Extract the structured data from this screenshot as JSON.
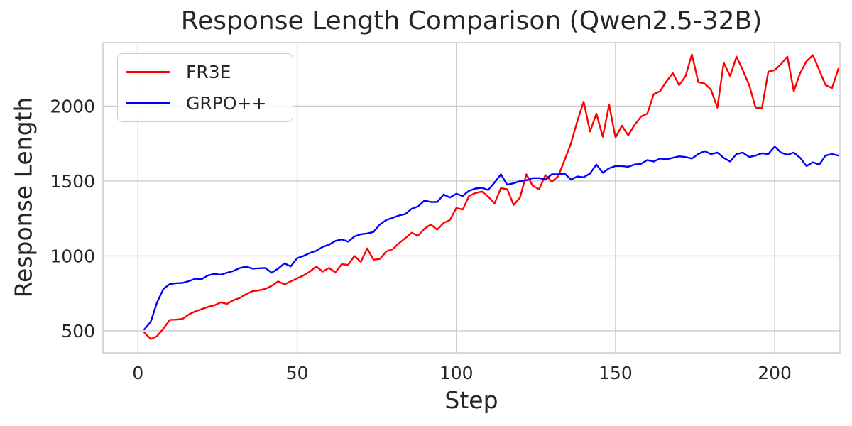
{
  "figure": {
    "title": "Response Length Comparison (Qwen2.5-32B)",
    "xlabel": "Step",
    "ylabel": "Response Length"
  },
  "colors": {
    "fr3e_line": "#ff0000",
    "grpo_line": "#0000ff",
    "grid": "#cccccc",
    "axes_edge": "#cccccc",
    "text": "#262626",
    "background": "#ffffff"
  },
  "chart_data": {
    "type": "line",
    "title": "Response Length Comparison (Qwen2.5-32B)",
    "xlabel": "Step",
    "ylabel": "Response Length",
    "xlim": [
      -11,
      220.5
    ],
    "ylim": [
      353,
      2424
    ],
    "xticks": [
      0,
      50,
      100,
      150,
      200
    ],
    "yticks": [
      500,
      1000,
      1500,
      2000
    ],
    "grid": true,
    "grid_color": "#cccccc",
    "axes_edge_color": "#cccccc",
    "text_color": "#262626",
    "legend_position": "upper left",
    "x": [
      2,
      4,
      6,
      8,
      10,
      12,
      14,
      16,
      18,
      20,
      22,
      24,
      26,
      28,
      30,
      32,
      34,
      36,
      38,
      40,
      42,
      44,
      46,
      48,
      50,
      52,
      54,
      56,
      58,
      60,
      62,
      64,
      66,
      68,
      70,
      72,
      74,
      76,
      78,
      80,
      82,
      84,
      86,
      88,
      90,
      92,
      94,
      96,
      98,
      100,
      102,
      104,
      106,
      108,
      110,
      112,
      114,
      116,
      118,
      120,
      122,
      124,
      126,
      128,
      130,
      132,
      134,
      136,
      138,
      140,
      142,
      144,
      146,
      148,
      150,
      152,
      154,
      156,
      158,
      160,
      162,
      164,
      166,
      168,
      170,
      172,
      174,
      176,
      178,
      180,
      182,
      184,
      186,
      188,
      190,
      192,
      194,
      196,
      198,
      200,
      202,
      204,
      206,
      208,
      210,
      212,
      214,
      216,
      218,
      220
    ],
    "series": [
      {
        "name": "FR3E",
        "color": "#ff0000",
        "values": [
          489,
          445,
          465,
          515,
          573,
          575,
          580,
          610,
          630,
          645,
          660,
          670,
          690,
          680,
          705,
          720,
          745,
          765,
          770,
          780,
          800,
          830,
          810,
          830,
          850,
          870,
          895,
          930,
          895,
          920,
          890,
          945,
          940,
          1000,
          960,
          1050,
          975,
          980,
          1030,
          1045,
          1085,
          1120,
          1155,
          1135,
          1182,
          1210,
          1175,
          1220,
          1240,
          1320,
          1310,
          1400,
          1420,
          1430,
          1397,
          1350,
          1453,
          1445,
          1340,
          1390,
          1545,
          1468,
          1445,
          1540,
          1495,
          1532,
          1640,
          1750,
          1900,
          2030,
          1830,
          1950,
          1795,
          2010,
          1790,
          1870,
          1805,
          1875,
          1930,
          1950,
          2080,
          2100,
          2165,
          2220,
          2140,
          2200,
          2345,
          2160,
          2150,
          2110,
          1990,
          2290,
          2200,
          2330,
          2240,
          2140,
          1990,
          1985,
          2230,
          2240,
          2280,
          2330,
          2100,
          2220,
          2300,
          2340,
          2240,
          2140,
          2120,
          2250
        ]
      },
      {
        "name": "GRPO++",
        "color": "#0000ff",
        "values": [
          510,
          560,
          690,
          780,
          812,
          818,
          820,
          832,
          848,
          845,
          870,
          880,
          875,
          888,
          900,
          920,
          929,
          915,
          918,
          920,
          888,
          915,
          950,
          930,
          985,
          1000,
          1020,
          1035,
          1060,
          1075,
          1100,
          1111,
          1095,
          1130,
          1145,
          1150,
          1160,
          1210,
          1240,
          1255,
          1270,
          1280,
          1315,
          1330,
          1370,
          1360,
          1360,
          1410,
          1390,
          1415,
          1400,
          1435,
          1450,
          1455,
          1440,
          1490,
          1545,
          1475,
          1485,
          1500,
          1505,
          1520,
          1520,
          1510,
          1545,
          1545,
          1550,
          1510,
          1530,
          1525,
          1550,
          1610,
          1555,
          1585,
          1600,
          1600,
          1595,
          1610,
          1615,
          1640,
          1630,
          1650,
          1645,
          1655,
          1665,
          1660,
          1650,
          1680,
          1700,
          1680,
          1690,
          1655,
          1630,
          1680,
          1690,
          1660,
          1670,
          1685,
          1680,
          1730,
          1690,
          1675,
          1690,
          1655,
          1600,
          1625,
          1610,
          1670,
          1680,
          1670
        ]
      }
    ]
  }
}
